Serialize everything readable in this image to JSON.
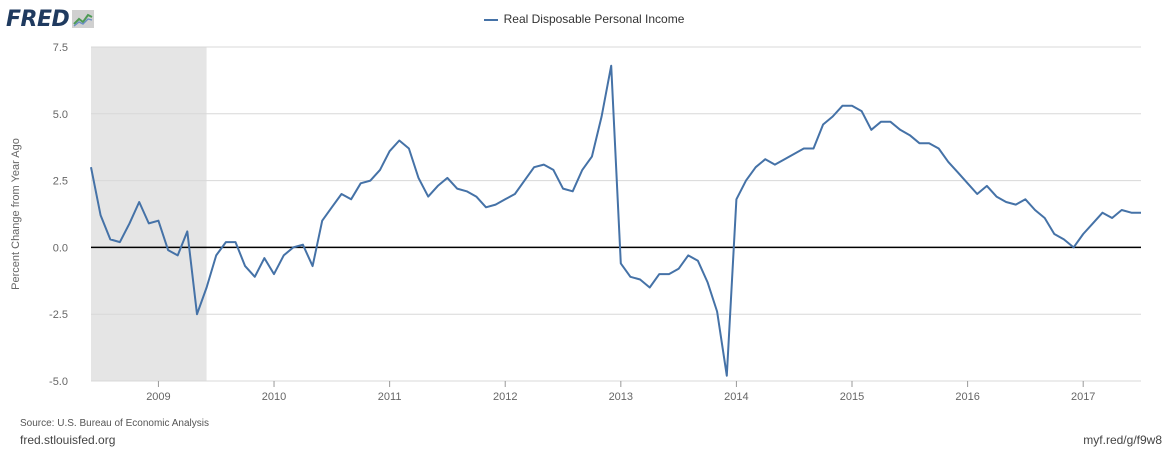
{
  "logo": {
    "text": "FRED"
  },
  "legend": {
    "label": "Real Disposable Personal Income"
  },
  "footer": {
    "source": "Source: U.S. Bureau of Economic Analysis",
    "site": "fred.stlouisfed.org",
    "shortlink": "myf.red/g/f9w8"
  },
  "colors": {
    "series": "#4572a7",
    "recession": "#e5e5e5",
    "zero_line": "#000000",
    "grid": "#d8d8d8"
  },
  "chart_data": {
    "type": "line",
    "title": "",
    "ylabel": "Percent Change from Year Ago",
    "xlabel": "",
    "ylim": [
      -5.0,
      7.5
    ],
    "xlim": [
      "2008-06-01",
      "2017-07-01"
    ],
    "yticks": [
      "7.5",
      "5.0",
      "2.5",
      "0.0",
      "-2.5",
      "-5.0"
    ],
    "xticks": [
      "2009",
      "2010",
      "2011",
      "2012",
      "2013",
      "2014",
      "2015",
      "2016",
      "2017"
    ],
    "grid": true,
    "legend": "top-center",
    "recession_shading": [
      [
        "2008-06-01",
        "2009-06-01"
      ]
    ],
    "series": [
      {
        "name": "Real Disposable Personal Income",
        "start": "2008-06",
        "frequency": "monthly",
        "values": [
          3.0,
          1.2,
          0.3,
          0.2,
          0.9,
          1.7,
          0.9,
          1.0,
          -0.1,
          -0.3,
          0.6,
          -2.5,
          -1.5,
          -0.3,
          0.2,
          0.2,
          -0.7,
          -1.1,
          -0.4,
          -1.0,
          -0.3,
          0.0,
          0.1,
          -0.7,
          1.0,
          1.5,
          2.0,
          1.8,
          2.4,
          2.5,
          2.9,
          3.6,
          4.0,
          3.7,
          2.6,
          1.9,
          2.3,
          2.6,
          2.2,
          2.1,
          1.9,
          1.5,
          1.6,
          1.8,
          2.0,
          2.5,
          3.0,
          3.1,
          2.9,
          2.2,
          2.1,
          2.9,
          3.4,
          4.9,
          6.8,
          -0.6,
          -1.1,
          -1.2,
          -1.5,
          -1.0,
          -1.0,
          -0.8,
          -0.3,
          -0.5,
          -1.3,
          -2.4,
          -4.8,
          1.8,
          2.5,
          3.0,
          3.3,
          3.1,
          3.3,
          3.5,
          3.7,
          3.7,
          4.6,
          4.9,
          5.3,
          5.3,
          5.1,
          4.4,
          4.7,
          4.7,
          4.4,
          4.2,
          3.9,
          3.9,
          3.7,
          3.2,
          2.8,
          2.4,
          2.0,
          2.3,
          1.9,
          1.7,
          1.6,
          1.8,
          1.4,
          1.1,
          0.5,
          0.3,
          0.0,
          0.5,
          0.9,
          1.3,
          1.1,
          1.4,
          1.3,
          1.3
        ]
      }
    ]
  }
}
